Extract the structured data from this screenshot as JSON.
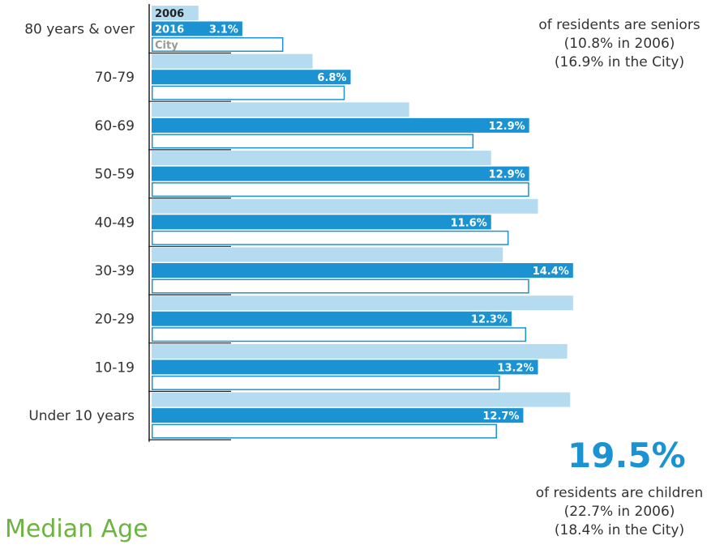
{
  "chart_data": {
    "type": "bar",
    "orientation": "horizontal",
    "categories": [
      "80 years & over",
      "70-79",
      "60-69",
      "50-59",
      "40-49",
      "30-39",
      "20-29",
      "10-19",
      "Under 10 years"
    ],
    "series": [
      {
        "name": "2006",
        "values": [
          1.6,
          5.5,
          8.8,
          11.6,
          13.2,
          12.0,
          14.4,
          14.2,
          14.3
        ],
        "color": "#b5dbf0"
      },
      {
        "name": "2016",
        "values": [
          3.1,
          6.8,
          12.9,
          12.9,
          11.6,
          14.4,
          12.3,
          13.2,
          12.7
        ],
        "color": "#1b93d2"
      },
      {
        "name": "City",
        "values": [
          4.5,
          6.6,
          11.0,
          12.9,
          12.2,
          12.9,
          12.8,
          11.9,
          11.8
        ],
        "color": "#ffffff",
        "stroke": "#1b93d2"
      }
    ],
    "data_labels": [
      "3.1%",
      "6.8%",
      "12.9%",
      "12.9%",
      "11.6%",
      "14.4%",
      "12.3%",
      "13.2%",
      "12.7%"
    ],
    "xlim": [
      0,
      14.4
    ],
    "legend_placement": "top-left",
    "grid": false
  },
  "colors": {
    "accent": "#1b93d2",
    "light": "#b5dbf0",
    "legend_2006_text": "#222222",
    "legend_2016_text": "#ffffff",
    "legend_city_text": "#999999",
    "heading_green": "#6cb33f"
  },
  "seniors_note": {
    "line1": "of residents are seniors",
    "line2": "(10.8% in 2006)",
    "line3": "(16.9% in the City)"
  },
  "children_note": {
    "big_value": "19.5%",
    "line1": "of residents are children",
    "line2": "(22.7% in 2006)",
    "line3": "(18.4% in the City)"
  },
  "section_heading": "Median Age"
}
